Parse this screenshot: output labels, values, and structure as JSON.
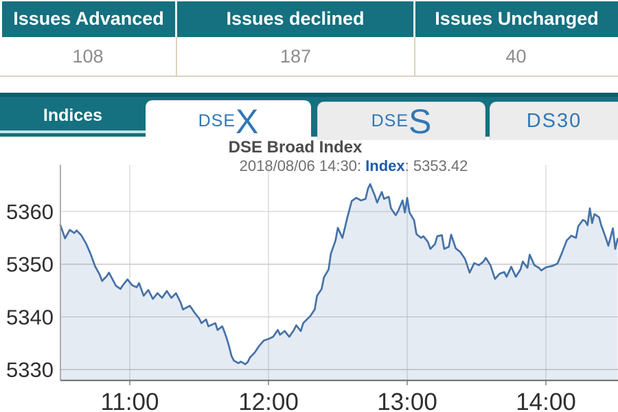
{
  "summary": {
    "columns": [
      {
        "label": "Issues Advanced",
        "value": "108"
      },
      {
        "label": "Issues declined",
        "value": "187"
      },
      {
        "label": "Issues Unchanged",
        "value": "40"
      }
    ]
  },
  "tabbar": {
    "section_label": "Indices",
    "tabs": [
      {
        "id": "dsex",
        "prefix": "DSE",
        "suffix": "X",
        "active": true
      },
      {
        "id": "dses",
        "prefix": "DSE",
        "suffix": "S",
        "active": false
      },
      {
        "id": "ds30",
        "prefix": "DS30",
        "suffix": "",
        "active": false
      }
    ]
  },
  "chart": {
    "title": "DSE Broad Index",
    "subtitle_datetime": "2018/08/06 14:30: ",
    "subtitle_index_label": "Index",
    "subtitle_index_value": ": 5353.42"
  },
  "chart_data": {
    "type": "area",
    "title": "DSE Broad Index",
    "subtitle": "2018/08/06 14:30: Index: 5353.42",
    "last_value": 5353.42,
    "x_unit": "minutes since 10:30",
    "x_range_minutes": [
      0,
      241
    ],
    "x_tick_minutes": [
      30,
      90,
      150,
      210
    ],
    "x_tick_labels": [
      "11:00",
      "12:00",
      "13:00",
      "14:00"
    ],
    "y_ticks": [
      5330,
      5340,
      5350,
      5360
    ],
    "ylim": [
      5327.5,
      5368
    ],
    "grid": true,
    "legend": false,
    "line_color": "#4572a7",
    "fill_color": "rgba(69,114,167,0.14)",
    "points": [
      [
        0,
        5357.4
      ],
      [
        2,
        5354.9
      ],
      [
        4,
        5356.5
      ],
      [
        6,
        5355.9
      ],
      [
        7,
        5356.4
      ],
      [
        9,
        5355.5
      ],
      [
        11,
        5354.0
      ],
      [
        13,
        5352.0
      ],
      [
        15,
        5349.6
      ],
      [
        17,
        5348.0
      ],
      [
        18,
        5346.8
      ],
      [
        20,
        5347.7
      ],
      [
        21,
        5348.4
      ],
      [
        24,
        5345.9
      ],
      [
        26,
        5345.3
      ],
      [
        27,
        5346.0
      ],
      [
        29,
        5347.1
      ],
      [
        31,
        5346.0
      ],
      [
        33,
        5345.6
      ],
      [
        34,
        5346.4
      ],
      [
        36,
        5344.0
      ],
      [
        38,
        5345.1
      ],
      [
        40,
        5343.4
      ],
      [
        42,
        5344.5
      ],
      [
        44,
        5343.6
      ],
      [
        46,
        5344.9
      ],
      [
        48,
        5343.6
      ],
      [
        50,
        5344.5
      ],
      [
        52,
        5342.7
      ],
      [
        53,
        5341.4
      ],
      [
        56,
        5342.1
      ],
      [
        58,
        5340.8
      ],
      [
        60,
        5339.7
      ],
      [
        61,
        5338.8
      ],
      [
        63,
        5339.5
      ],
      [
        64,
        5338.2
      ],
      [
        67,
        5338.8
      ],
      [
        68,
        5337.5
      ],
      [
        70,
        5338.2
      ],
      [
        71,
        5337.1
      ],
      [
        72,
        5335.8
      ],
      [
        73,
        5334.3
      ],
      [
        74,
        5332.6
      ],
      [
        75,
        5331.7
      ],
      [
        77,
        5331.2
      ],
      [
        78,
        5331.5
      ],
      [
        80,
        5331.0
      ],
      [
        81,
        5331.4
      ],
      [
        82,
        5332.3
      ],
      [
        84,
        5333.2
      ],
      [
        86,
        5334.5
      ],
      [
        88,
        5335.5
      ],
      [
        90,
        5335.8
      ],
      [
        92,
        5336.2
      ],
      [
        94,
        5337.5
      ],
      [
        95,
        5336.6
      ],
      [
        97,
        5337.3
      ],
      [
        99,
        5336.2
      ],
      [
        101,
        5337.5
      ],
      [
        102,
        5338.4
      ],
      [
        104,
        5337.3
      ],
      [
        105,
        5338.8
      ],
      [
        108,
        5340.1
      ],
      [
        110,
        5341.4
      ],
      [
        111,
        5344.0
      ],
      [
        113,
        5345.3
      ],
      [
        114,
        5347.5
      ],
      [
        116,
        5349.0
      ],
      [
        117,
        5352.0
      ],
      [
        119,
        5354.5
      ],
      [
        120,
        5356.9
      ],
      [
        122,
        5355.0
      ],
      [
        123,
        5356.8
      ],
      [
        124,
        5358.7
      ],
      [
        126,
        5362.0
      ],
      [
        128,
        5362.6
      ],
      [
        130,
        5362.1
      ],
      [
        132,
        5362.4
      ],
      [
        133,
        5364.3
      ],
      [
        134,
        5365.2
      ],
      [
        136,
        5363.0
      ],
      [
        137,
        5361.7
      ],
      [
        139,
        5363.7
      ],
      [
        140,
        5362.4
      ],
      [
        142,
        5362.8
      ],
      [
        143,
        5360.6
      ],
      [
        145,
        5359.3
      ],
      [
        146,
        5360.0
      ],
      [
        148,
        5362.1
      ],
      [
        149,
        5359.8
      ],
      [
        150,
        5362.6
      ],
      [
        151,
        5359.8
      ],
      [
        153,
        5358.3
      ],
      [
        154,
        5355.7
      ],
      [
        156,
        5355.0
      ],
      [
        157,
        5355.3
      ],
      [
        159,
        5354.2
      ],
      [
        160,
        5352.9
      ],
      [
        162,
        5353.8
      ],
      [
        163,
        5355.3
      ],
      [
        165,
        5355.5
      ],
      [
        166,
        5352.9
      ],
      [
        168,
        5353.3
      ],
      [
        169,
        5355.6
      ],
      [
        171,
        5353.0
      ],
      [
        173,
        5352.3
      ],
      [
        175,
        5351.0
      ],
      [
        177,
        5348.4
      ],
      [
        179,
        5350.2
      ],
      [
        181,
        5349.8
      ],
      [
        183,
        5350.5
      ],
      [
        184,
        5351.2
      ],
      [
        186,
        5349.8
      ],
      [
        188,
        5347.2
      ],
      [
        190,
        5348.2
      ],
      [
        192,
        5348.5
      ],
      [
        193,
        5347.6
      ],
      [
        195,
        5349.5
      ],
      [
        197,
        5347.6
      ],
      [
        199,
        5349.0
      ],
      [
        200,
        5350.5
      ],
      [
        202,
        5349.3
      ],
      [
        203,
        5351.8
      ],
      [
        205,
        5349.8
      ],
      [
        207,
        5349.3
      ],
      [
        208,
        5348.8
      ],
      [
        210,
        5349.4
      ],
      [
        213,
        5349.7
      ],
      [
        215,
        5350.1
      ],
      [
        217,
        5352.2
      ],
      [
        219,
        5354.5
      ],
      [
        221,
        5355.4
      ],
      [
        223,
        5355.0
      ],
      [
        224,
        5357.2
      ],
      [
        226,
        5358.4
      ],
      [
        227,
        5358.2
      ],
      [
        228,
        5357.4
      ],
      [
        229,
        5360.6
      ],
      [
        230,
        5357.8
      ],
      [
        231,
        5359.5
      ],
      [
        233,
        5358.9
      ],
      [
        234,
        5357.3
      ],
      [
        236,
        5354.9
      ],
      [
        237,
        5353.5
      ],
      [
        239,
        5356.8
      ],
      [
        240,
        5352.9
      ],
      [
        241,
        5354.8
      ]
    ]
  },
  "colors": {
    "teal": "#15707f",
    "teal_dark": "#0d5d6c",
    "stripe": "#c9e2e6",
    "tab_text_blue": "#3277b5",
    "index_blue": "#1e5ab0",
    "title_text": "#4c4c4c",
    "subtitle_text": "#6f6f6f",
    "value_text": "#8c8c8c",
    "table_divider_beige": "#d9d3bd",
    "tab_inactive_gray": "#ececec",
    "line_blue": "#4572a7",
    "gridline_gray": "#c9c9c9"
  }
}
